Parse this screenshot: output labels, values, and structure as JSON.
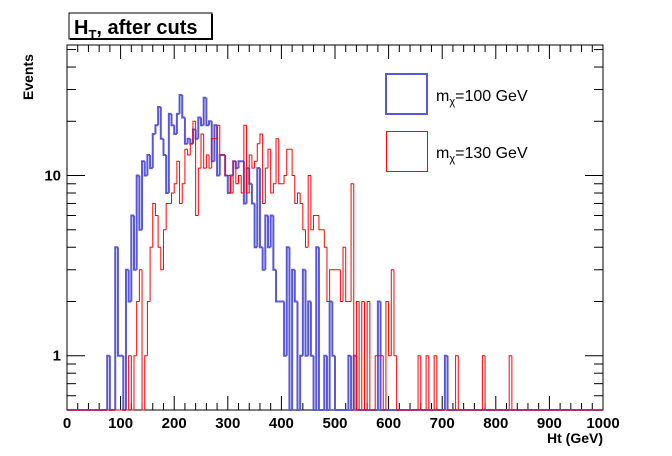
{
  "chart_data": {
    "type": "histogram",
    "title": "H_T, after cuts",
    "title_main": "H",
    "title_sub": "T",
    "title_rest": ", after cuts",
    "xlabel": "Ht (GeV)",
    "ylabel": "Events",
    "xlim": [
      0,
      1000
    ],
    "ylim": [
      0.5,
      53
    ],
    "yscale": "log",
    "grid": false,
    "legend_position": "top-right",
    "bin_width": 5,
    "x_tick_labels": [
      "0",
      "100",
      "200",
      "300",
      "400",
      "500",
      "600",
      "700",
      "800",
      "900",
      "1000"
    ],
    "y_tick_labels": [
      "1",
      "10"
    ],
    "series": [
      {
        "name": "mχ=100 GeV",
        "legend_main": "m",
        "legend_sub": "χ",
        "legend_rest": "=100 GeV",
        "color": "#5858d8",
        "bins": [
          [
            75,
            1
          ],
          [
            90,
            4
          ],
          [
            95,
            1
          ],
          [
            100,
            1
          ],
          [
            110,
            3
          ],
          [
            115,
            2
          ],
          [
            120,
            6
          ],
          [
            125,
            3
          ],
          [
            130,
            10
          ],
          [
            135,
            5
          ],
          [
            140,
            12
          ],
          [
            145,
            10
          ],
          [
            150,
            13
          ],
          [
            155,
            11
          ],
          [
            160,
            17
          ],
          [
            165,
            19
          ],
          [
            170,
            24
          ],
          [
            175,
            16
          ],
          [
            180,
            13
          ],
          [
            185,
            8
          ],
          [
            190,
            22
          ],
          [
            195,
            19
          ],
          [
            200,
            17
          ],
          [
            205,
            22
          ],
          [
            210,
            28
          ],
          [
            215,
            21
          ],
          [
            220,
            15
          ],
          [
            225,
            16
          ],
          [
            230,
            15
          ],
          [
            235,
            18
          ],
          [
            240,
            16
          ],
          [
            245,
            21
          ],
          [
            250,
            19
          ],
          [
            255,
            27
          ],
          [
            260,
            19
          ],
          [
            265,
            20
          ],
          [
            270,
            12
          ],
          [
            275,
            19
          ],
          [
            280,
            10
          ],
          [
            285,
            13
          ],
          [
            290,
            13
          ],
          [
            295,
            10
          ],
          [
            300,
            8
          ],
          [
            305,
            10
          ],
          [
            310,
            12
          ],
          [
            315,
            11
          ],
          [
            320,
            12
          ],
          [
            325,
            12
          ],
          [
            330,
            7
          ],
          [
            335,
            11
          ],
          [
            340,
            9
          ],
          [
            345,
            7
          ],
          [
            350,
            4
          ],
          [
            355,
            11
          ],
          [
            360,
            4
          ],
          [
            365,
            3
          ],
          [
            370,
            6
          ],
          [
            375,
            4
          ],
          [
            380,
            6
          ],
          [
            385,
            3
          ],
          [
            390,
            2
          ],
          [
            395,
            2
          ],
          [
            400,
            2
          ],
          [
            405,
            1
          ],
          [
            410,
            4
          ],
          [
            420,
            3
          ],
          [
            425,
            2
          ],
          [
            435,
            1
          ],
          [
            440,
            3
          ],
          [
            445,
            1
          ],
          [
            450,
            2
          ],
          [
            455,
            1
          ],
          [
            465,
            4
          ],
          [
            480,
            1
          ],
          [
            490,
            2
          ],
          [
            495,
            1
          ],
          [
            525,
            1
          ],
          [
            535,
            1
          ],
          [
            580,
            2
          ],
          [
            705,
            1
          ]
        ]
      },
      {
        "name": "mχ=130 GeV",
        "legend_main": "m",
        "legend_sub": "χ",
        "legend_rest": "=130 GeV",
        "color": "#ff0000",
        "bins": [
          [
            115,
            1
          ],
          [
            125,
            1
          ],
          [
            130,
            2
          ],
          [
            135,
            3
          ],
          [
            145,
            1
          ],
          [
            150,
            2
          ],
          [
            155,
            4
          ],
          [
            160,
            7
          ],
          [
            165,
            6
          ],
          [
            170,
            4
          ],
          [
            175,
            3
          ],
          [
            180,
            5
          ],
          [
            185,
            7
          ],
          [
            190,
            7
          ],
          [
            195,
            8
          ],
          [
            200,
            9
          ],
          [
            205,
            12
          ],
          [
            210,
            7
          ],
          [
            215,
            9
          ],
          [
            220,
            14
          ],
          [
            225,
            13
          ],
          [
            230,
            15
          ],
          [
            235,
            20
          ],
          [
            240,
            6
          ],
          [
            245,
            11
          ],
          [
            250,
            17
          ],
          [
            255,
            11
          ],
          [
            260,
            13
          ],
          [
            265,
            11
          ],
          [
            270,
            16
          ],
          [
            275,
            16
          ],
          [
            280,
            19
          ],
          [
            285,
            13
          ],
          [
            290,
            13
          ],
          [
            295,
            10
          ],
          [
            300,
            10
          ],
          [
            305,
            8
          ],
          [
            310,
            12
          ],
          [
            315,
            9
          ],
          [
            320,
            10
          ],
          [
            325,
            8
          ],
          [
            330,
            19
          ],
          [
            335,
            8
          ],
          [
            340,
            13
          ],
          [
            345,
            11
          ],
          [
            350,
            12
          ],
          [
            355,
            15
          ],
          [
            360,
            17
          ],
          [
            365,
            7
          ],
          [
            370,
            11
          ],
          [
            375,
            14
          ],
          [
            380,
            8
          ],
          [
            385,
            9
          ],
          [
            390,
            16
          ],
          [
            395,
            9
          ],
          [
            400,
            9
          ],
          [
            405,
            10
          ],
          [
            410,
            14
          ],
          [
            415,
            14
          ],
          [
            420,
            10
          ],
          [
            425,
            7
          ],
          [
            430,
            8
          ],
          [
            435,
            7
          ],
          [
            440,
            5
          ],
          [
            445,
            4
          ],
          [
            450,
            10
          ],
          [
            455,
            5
          ],
          [
            460,
            6
          ],
          [
            465,
            6
          ],
          [
            470,
            5
          ],
          [
            475,
            5
          ],
          [
            480,
            4
          ],
          [
            485,
            2
          ],
          [
            490,
            3
          ],
          [
            495,
            3
          ],
          [
            500,
            3
          ],
          [
            505,
            3
          ],
          [
            510,
            2
          ],
          [
            515,
            4
          ],
          [
            520,
            2
          ],
          [
            525,
            2
          ],
          [
            530,
            9
          ],
          [
            540,
            2
          ],
          [
            550,
            2
          ],
          [
            560,
            2
          ],
          [
            575,
            1
          ],
          [
            580,
            1
          ],
          [
            585,
            1
          ],
          [
            595,
            2
          ],
          [
            600,
            1
          ],
          [
            605,
            3
          ],
          [
            610,
            1
          ],
          [
            655,
            1
          ],
          [
            670,
            1
          ],
          [
            685,
            1
          ],
          [
            725,
            1
          ],
          [
            775,
            1
          ],
          [
            825,
            1
          ]
        ]
      }
    ]
  }
}
